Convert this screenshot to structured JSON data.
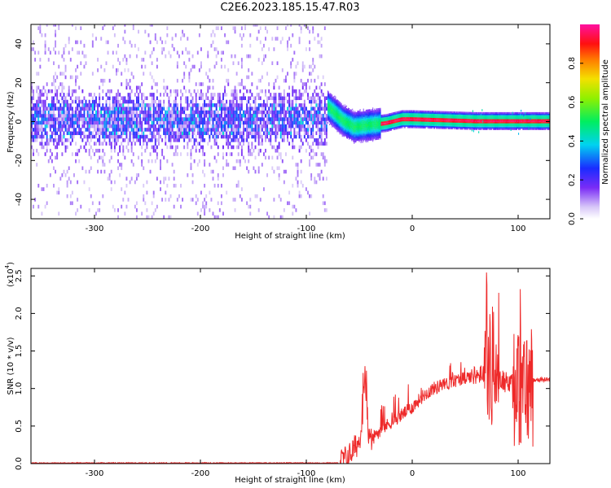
{
  "figure_title": "C2E6.2023.185.15.47.R03",
  "colors": {
    "snr_line": "#ee2a2a",
    "axis": "#000000",
    "background": "#ffffff"
  },
  "chart_data": [
    {
      "type": "heatmap",
      "title": "C2E6.2023.185.15.47.R03",
      "xlabel": "Height of straight line (km)",
      "ylabel": "Frequency (Hz)",
      "xlim": [
        -360,
        130
      ],
      "ylim": [
        -50,
        50
      ],
      "xticks": [
        -300,
        -200,
        -100,
        0,
        100
      ],
      "xtick_labels": [
        "-300",
        "-200",
        "-100",
        "0",
        "100"
      ],
      "yticks": [
        -40,
        -20,
        0,
        20,
        40
      ],
      "ytick_labels": [
        "-40",
        "-20",
        "0",
        "20",
        "40"
      ],
      "colorbar": {
        "label": "Normalized spectral amplitude",
        "range": [
          0,
          1
        ],
        "ticks": [
          0.0,
          0.2,
          0.4,
          0.6,
          0.8
        ],
        "tick_labels": [
          "0.0",
          "0.2",
          "0.4",
          "0.6",
          "0.8"
        ],
        "colormap": "rainbow (white-violet-blue-cyan-green-yellow-red-magenta)"
      },
      "description_points": {
        "noise_region_x": [
          -360,
          -80
        ],
        "carrier_center_freq_by_height": [
          {
            "x": -75,
            "f": 5
          },
          {
            "x": -65,
            "f": 0
          },
          {
            "x": -55,
            "f": -3
          },
          {
            "x": -40,
            "f": -2
          },
          {
            "x": -25,
            "f": -1
          },
          {
            "x": -10,
            "f": 1
          },
          {
            "x": 0,
            "f": 1
          },
          {
            "x": 60,
            "f": 0
          },
          {
            "x": 110,
            "f": 0
          },
          {
            "x": 130,
            "f": 0
          }
        ]
      }
    },
    {
      "type": "line",
      "xlabel": "Height of straight line (km)",
      "ylabel": "SNR (10 * v/v)",
      "y_multiplier_label": "(x10",
      "y_multiplier_exp": "4",
      "xlim": [
        -360,
        130
      ],
      "ylim": [
        0,
        2.6
      ],
      "xticks": [
        -300,
        -200,
        -100,
        0,
        100
      ],
      "xtick_labels": [
        "-300",
        "-200",
        "-100",
        "0",
        "100"
      ],
      "yticks": [
        0.0,
        0.5,
        1.0,
        1.5,
        2.0,
        2.5
      ],
      "ytick_labels": [
        "0.0",
        "0.5",
        "1.0",
        "1.5",
        "2.0",
        "2.5"
      ],
      "series": [
        {
          "name": "SNR",
          "approx_profile": [
            {
              "x": -360,
              "y": 0.0
            },
            {
              "x": -200,
              "y": 0.0
            },
            {
              "x": -100,
              "y": 0.0
            },
            {
              "x": -70,
              "y": 0.01
            },
            {
              "x": -60,
              "y": 0.1
            },
            {
              "x": -50,
              "y": 0.3
            },
            {
              "x": -45,
              "y": 0.8
            },
            {
              "x": -40,
              "y": 0.3
            },
            {
              "x": -30,
              "y": 0.45
            },
            {
              "x": -20,
              "y": 0.55
            },
            {
              "x": -10,
              "y": 0.65
            },
            {
              "x": 0,
              "y": 0.75
            },
            {
              "x": 10,
              "y": 0.9
            },
            {
              "x": 20,
              "y": 1.0
            },
            {
              "x": 30,
              "y": 1.05
            },
            {
              "x": 40,
              "y": 1.1
            },
            {
              "x": 50,
              "y": 1.15
            },
            {
              "x": 60,
              "y": 1.18
            },
            {
              "x": 70,
              "y": 1.2
            },
            {
              "x": 75,
              "y": 2.6
            },
            {
              "x": 80,
              "y": 1.0
            },
            {
              "x": 90,
              "y": 1.1
            },
            {
              "x": 100,
              "y": 2.4
            },
            {
              "x": 110,
              "y": 1.1
            },
            {
              "x": 120,
              "y": 1.12
            },
            {
              "x": 130,
              "y": 1.12
            }
          ]
        }
      ]
    }
  ]
}
